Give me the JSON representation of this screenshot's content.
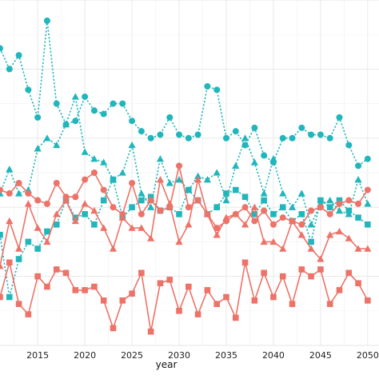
{
  "chart_data": {
    "type": "line",
    "xlabel": "year",
    "x_ticks": [
      2015,
      2020,
      2025,
      2030,
      2035,
      2040,
      2045,
      2050
    ],
    "x_tick_labels": [
      "2015",
      "2020",
      "2025",
      "2030",
      "2035",
      "2040",
      "2045",
      "2050"
    ],
    "xlim": [
      2011.0,
      2051.2
    ],
    "ylim": [
      0,
      1
    ],
    "grid": true,
    "legend": "none",
    "colors": {
      "teal": "#21b6bc",
      "salmon": "#ed7268"
    },
    "x": [
      2011,
      2012,
      2013,
      2014,
      2015,
      2016,
      2017,
      2018,
      2019,
      2020,
      2021,
      2022,
      2023,
      2024,
      2025,
      2026,
      2027,
      2028,
      2029,
      2030,
      2031,
      2032,
      2033,
      2034,
      2035,
      2036,
      2037,
      2038,
      2039,
      2040,
      2041,
      2042,
      2043,
      2044,
      2045,
      2046,
      2047,
      2048,
      2049,
      2050
    ],
    "series": [
      {
        "color": "teal",
        "shape": "circle",
        "dash": "dotted",
        "values": [
          0.86,
          0.8,
          0.84,
          0.74,
          0.66,
          0.94,
          0.7,
          0.64,
          0.65,
          0.72,
          0.68,
          0.67,
          0.7,
          0.7,
          0.65,
          0.62,
          0.6,
          0.61,
          0.66,
          0.61,
          0.6,
          0.61,
          0.75,
          0.74,
          0.6,
          0.62,
          0.58,
          0.63,
          0.55,
          0.53,
          0.6,
          0.6,
          0.63,
          0.61,
          0.61,
          0.6,
          0.66,
          0.58,
          0.52,
          0.54
        ]
      },
      {
        "color": "teal",
        "shape": "triangle",
        "dash": "dotted",
        "values": [
          0.44,
          0.51,
          0.44,
          0.45,
          0.57,
          0.6,
          0.58,
          0.64,
          0.72,
          0.56,
          0.54,
          0.53,
          0.48,
          0.5,
          0.58,
          0.44,
          0.4,
          0.54,
          0.47,
          0.48,
          0.45,
          0.49,
          0.48,
          0.5,
          0.42,
          0.52,
          0.6,
          0.53,
          0.44,
          0.54,
          0.44,
          0.4,
          0.44,
          0.35,
          0.41,
          0.42,
          0.39,
          0.38,
          0.48,
          0.41
        ]
      },
      {
        "color": "teal",
        "shape": "square",
        "dash": "dotted",
        "values": [
          0.32,
          0.14,
          0.25,
          0.3,
          0.28,
          0.33,
          0.35,
          0.42,
          0.37,
          0.38,
          0.35,
          0.42,
          0.48,
          0.37,
          0.4,
          0.42,
          0.43,
          0.39,
          0.4,
          0.38,
          0.45,
          0.42,
          0.38,
          0.4,
          0.44,
          0.45,
          0.43,
          0.38,
          0.42,
          0.38,
          0.4,
          0.36,
          0.38,
          0.3,
          0.42,
          0.4,
          0.42,
          0.39,
          0.37,
          0.35
        ]
      },
      {
        "color": "salmon",
        "shape": "circle",
        "dash": "solid",
        "values": [
          0.45,
          0.44,
          0.47,
          0.44,
          0.42,
          0.41,
          0.47,
          0.43,
          0.43,
          0.48,
          0.5,
          0.45,
          0.4,
          0.38,
          0.47,
          0.38,
          0.42,
          0.39,
          0.4,
          0.52,
          0.4,
          0.42,
          0.38,
          0.34,
          0.36,
          0.38,
          0.4,
          0.36,
          0.39,
          0.35,
          0.37,
          0.36,
          0.35,
          0.39,
          0.4,
          0.38,
          0.41,
          0.42,
          0.41,
          0.45
        ]
      },
      {
        "color": "salmon",
        "shape": "triangle",
        "dash": "solid",
        "values": [
          0.23,
          0.36,
          0.28,
          0.41,
          0.34,
          0.3,
          0.38,
          0.42,
          0.36,
          0.41,
          0.39,
          0.34,
          0.28,
          0.37,
          0.34,
          0.34,
          0.31,
          0.48,
          0.41,
          0.3,
          0.35,
          0.48,
          0.38,
          0.32,
          0.37,
          0.38,
          0.35,
          0.4,
          0.3,
          0.3,
          0.28,
          0.36,
          0.32,
          0.28,
          0.25,
          0.32,
          0.33,
          0.31,
          0.28,
          0.28
        ]
      },
      {
        "color": "salmon",
        "shape": "square",
        "dash": "solid",
        "values": [
          0.14,
          0.24,
          0.12,
          0.09,
          0.2,
          0.17,
          0.22,
          0.21,
          0.16,
          0.16,
          0.17,
          0.13,
          0.05,
          0.13,
          0.15,
          0.21,
          0.04,
          0.18,
          0.19,
          0.1,
          0.17,
          0.09,
          0.16,
          0.12,
          0.14,
          0.08,
          0.24,
          0.13,
          0.21,
          0.14,
          0.2,
          0.12,
          0.22,
          0.2,
          0.22,
          0.12,
          0.16,
          0.21,
          0.18,
          0.13
        ]
      }
    ]
  }
}
